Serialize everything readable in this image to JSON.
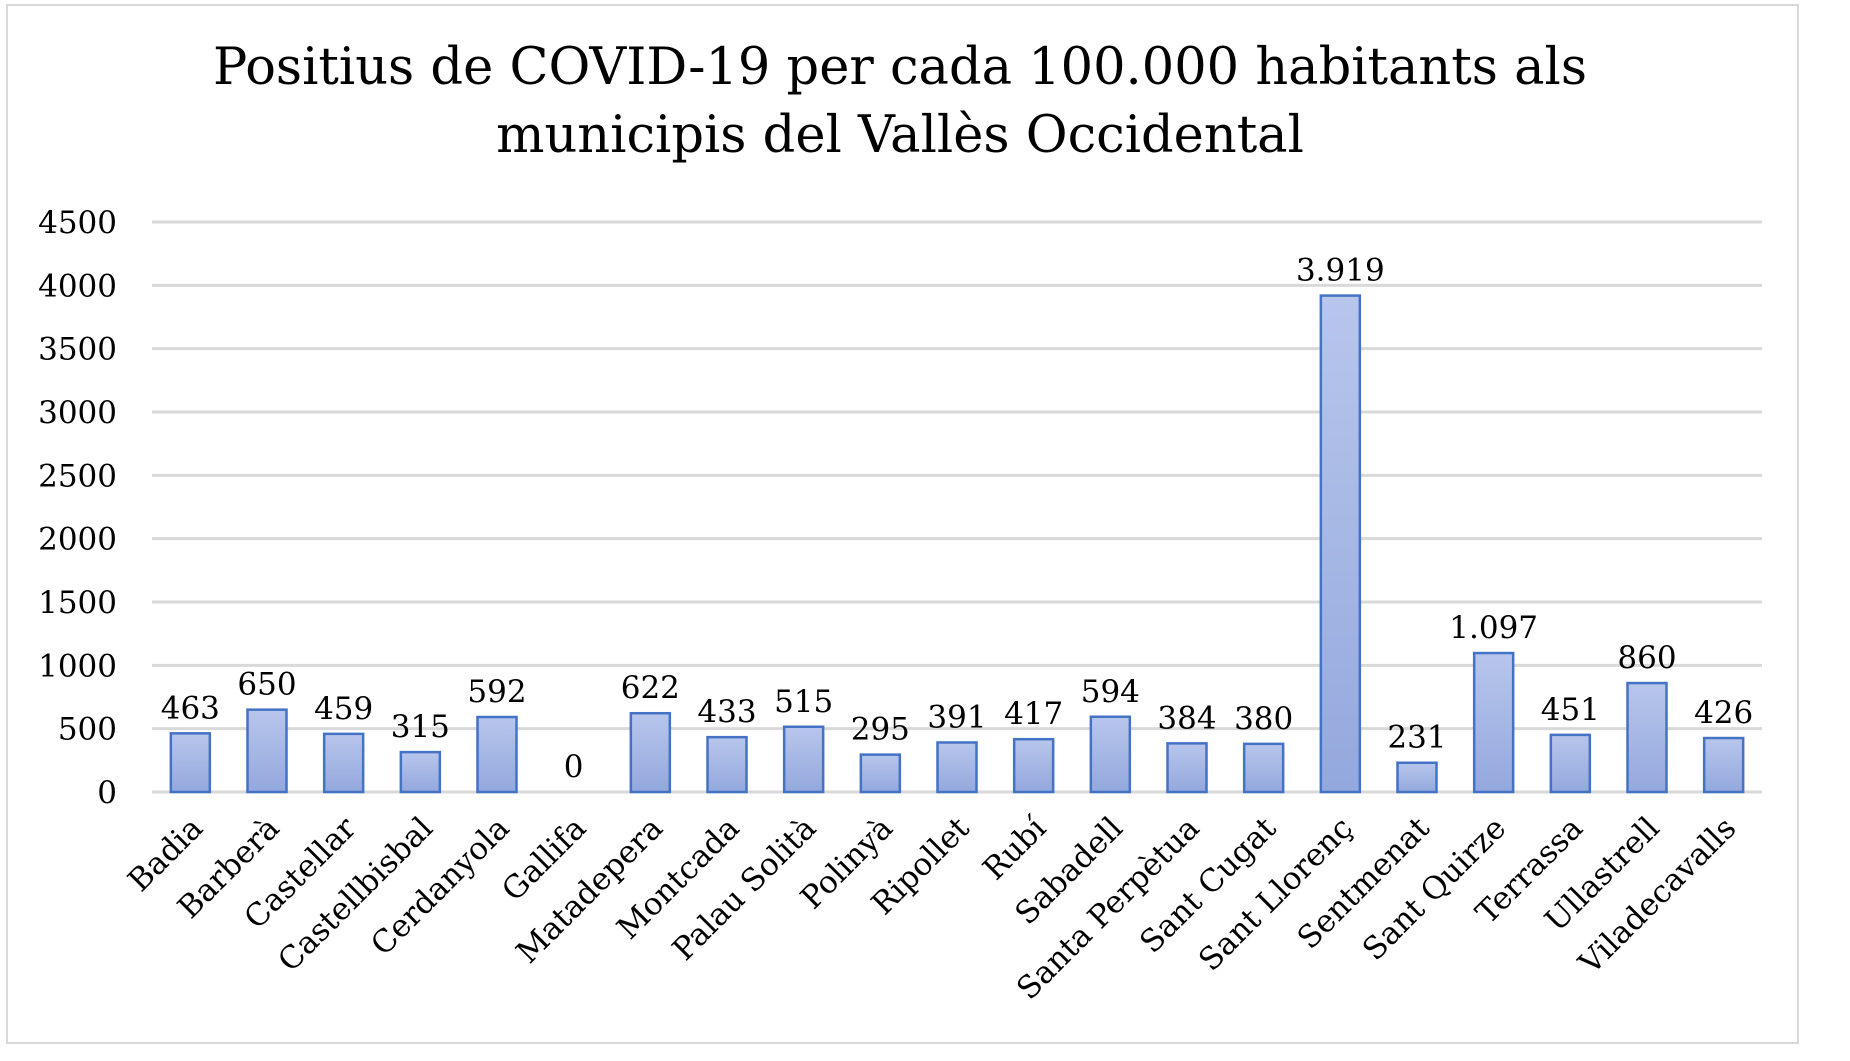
{
  "chart_data": {
    "type": "bar",
    "title_line1": "Positius de COVID-19 per cada 100.000 habitants als",
    "title_line2": "municipis del Vallès Occidental",
    "xlabel": "",
    "ylabel": "",
    "ylim": [
      0,
      4500
    ],
    "yticks": [
      "0",
      "500",
      "1000",
      "1500",
      "2000",
      "2500",
      "3000",
      "3500",
      "4000",
      "4500"
    ],
    "ytick_values": [
      0,
      500,
      1000,
      1500,
      2000,
      2500,
      3000,
      3500,
      4000,
      4500
    ],
    "grid": true,
    "legend": "none",
    "categories": [
      "Badia",
      "Barberà",
      "Castellar",
      "Castellbisbal",
      "Cerdanyola",
      "Gallifa",
      "Matadepera",
      "Montcada",
      "Palau Solità",
      "Polinyà",
      "Ripollet",
      "Rubí",
      "Sabadell",
      "Santa Perpètua",
      "Sant Cugat",
      "Sant Llorenç",
      "Sentmenat",
      "Sant Quirze",
      "Terrassa",
      "Ullastrell",
      "Viladecavalls"
    ],
    "values": [
      463,
      650,
      459,
      315,
      592,
      0,
      622,
      433,
      515,
      295,
      391,
      417,
      594,
      384,
      380,
      3919,
      231,
      1097,
      451,
      860,
      426
    ],
    "data_labels": [
      "463",
      "650",
      "459",
      "315",
      "592",
      "0",
      "622",
      "433",
      "515",
      "295",
      "391",
      "417",
      "594",
      "384",
      "380",
      "3.919",
      "231",
      "1.097",
      "451",
      "860",
      "426"
    ],
    "colors": {
      "bar_fill": "#a9b9e3",
      "bar_fill_top": "#b8c6ec",
      "bar_stroke": "#4472c4",
      "grid": "#d9d9d9"
    }
  }
}
